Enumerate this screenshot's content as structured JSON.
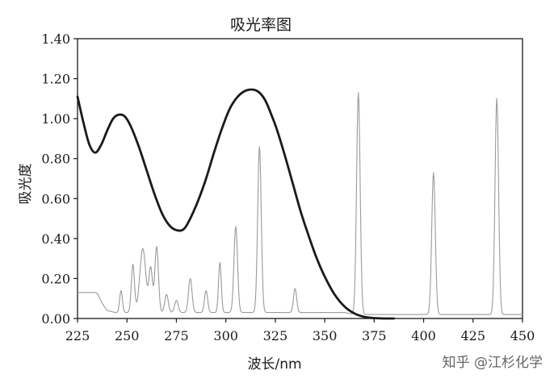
{
  "chart_data": {
    "type": "line",
    "title": "吸光率图",
    "xlabel": "波长/nm",
    "ylabel": "吸光度",
    "xlim": [
      225,
      450
    ],
    "ylim": [
      0,
      1.4
    ],
    "x_ticks": [
      "225",
      "250",
      "275",
      "300",
      "325",
      "350",
      "375",
      "400",
      "425",
      "450"
    ],
    "y_ticks": [
      "0.00",
      "0.20",
      "0.40",
      "0.60",
      "0.80",
      "1.00",
      "1.20",
      "1.40"
    ],
    "grid": false,
    "legend": "none",
    "series": [
      {
        "color": "#1a1a1a",
        "style": "thick",
        "x": [
          225,
          228,
          231,
          234,
          237,
          240,
          243,
          246,
          249,
          252,
          256,
          260,
          264,
          268,
          272,
          276,
          279,
          282,
          286,
          290,
          294,
          298,
          302,
          306,
          310,
          314,
          317,
          320,
          323,
          326,
          330,
          334,
          338,
          342,
          346,
          350,
          355,
          360,
          365,
          370,
          375,
          380,
          385
        ],
        "values": [
          1.11,
          0.98,
          0.87,
          0.83,
          0.87,
          0.94,
          1.0,
          1.02,
          1.01,
          0.96,
          0.86,
          0.74,
          0.62,
          0.52,
          0.46,
          0.44,
          0.45,
          0.5,
          0.59,
          0.7,
          0.83,
          0.95,
          1.05,
          1.11,
          1.14,
          1.145,
          1.13,
          1.09,
          1.02,
          0.94,
          0.81,
          0.67,
          0.53,
          0.41,
          0.3,
          0.21,
          0.12,
          0.06,
          0.025,
          0.008,
          0.002,
          0.0,
          0.0
        ]
      },
      {
        "color": "#9a9a9a",
        "style": "thin",
        "baseline": [
          [
            225,
            0.13
          ],
          [
            233,
            0.13
          ],
          [
            234,
            0.12
          ],
          [
            237,
            0.08
          ],
          [
            240,
            0.04
          ],
          [
            244,
            0.03
          ],
          [
            360,
            0.03
          ],
          [
            365,
            0.02
          ],
          [
            450,
            0.02
          ]
        ],
        "peaks": [
          {
            "x": 234,
            "y": 0.13,
            "w": 1.4
          },
          {
            "x": 247,
            "y": 0.14,
            "w": 0.7
          },
          {
            "x": 253,
            "y": 0.27,
            "w": 0.8
          },
          {
            "x": 258,
            "y": 0.35,
            "w": 1.5
          },
          {
            "x": 262,
            "y": 0.25,
            "w": 0.9
          },
          {
            "x": 265,
            "y": 0.36,
            "w": 0.9
          },
          {
            "x": 270,
            "y": 0.12,
            "w": 0.9
          },
          {
            "x": 275,
            "y": 0.09,
            "w": 0.9
          },
          {
            "x": 282,
            "y": 0.2,
            "w": 0.9
          },
          {
            "x": 290,
            "y": 0.14,
            "w": 0.8
          },
          {
            "x": 297,
            "y": 0.28,
            "w": 0.7
          },
          {
            "x": 305,
            "y": 0.46,
            "w": 0.9
          },
          {
            "x": 317,
            "y": 0.86,
            "w": 0.9
          },
          {
            "x": 335,
            "y": 0.15,
            "w": 0.8
          },
          {
            "x": 367,
            "y": 1.13,
            "w": 0.9
          },
          {
            "x": 405,
            "y": 0.73,
            "w": 0.9
          },
          {
            "x": 437,
            "y": 1.1,
            "w": 0.9
          }
        ]
      }
    ]
  },
  "watermark": "知乎 @江杉化学"
}
